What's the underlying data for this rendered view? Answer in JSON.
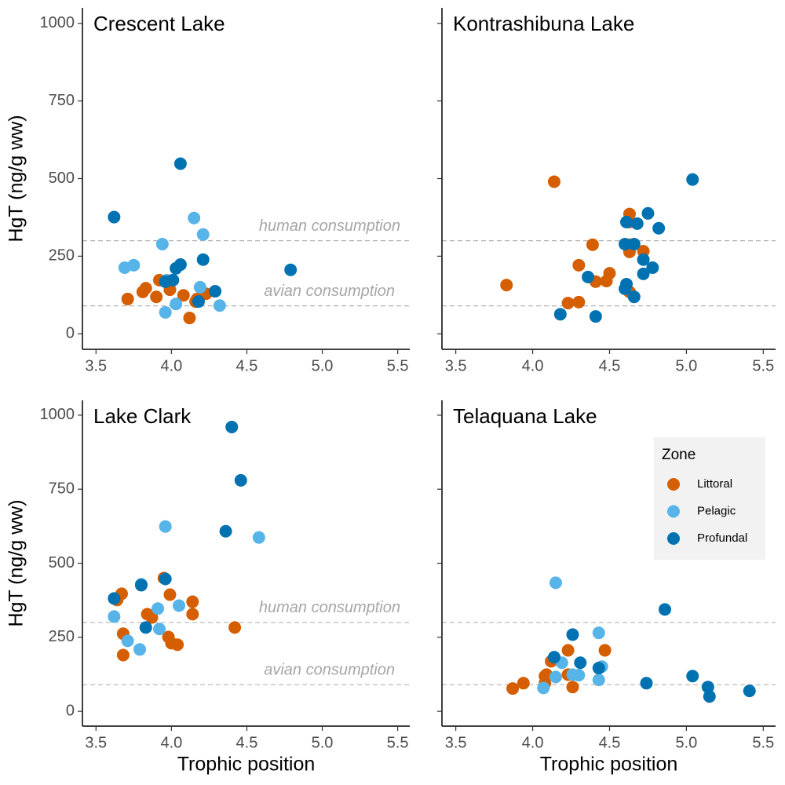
{
  "chart_data": [
    {
      "type": "scatter",
      "title": "Crescent Lake",
      "ylabel": "HgT (ng/g ww)",
      "ytick_labels": true,
      "xlim": [
        3.41,
        5.58
      ],
      "ylim": [
        -50,
        1050
      ],
      "xticks": [
        3.5,
        4.0,
        4.5,
        5.0,
        5.5
      ],
      "yticks": [
        0,
        250,
        500,
        750,
        1000
      ],
      "hlines": [
        {
          "value": 300,
          "label": "human consumption"
        },
        {
          "value": 90,
          "label": "avian consumption"
        }
      ],
      "series": [
        {
          "name": "Littoral",
          "color": "#d55e00",
          "x": [
            3.71,
            3.81,
            3.83,
            3.9,
            3.92,
            3.99,
            4.08,
            4.12,
            4.17,
            4.23,
            4.16
          ],
          "values": [
            112,
            135,
            147,
            119,
            173,
            142,
            124,
            51,
            112,
            129,
            104
          ]
        },
        {
          "name": "Pelagic",
          "color": "#56b4e9",
          "x": [
            3.69,
            3.75,
            3.94,
            3.96,
            4.03,
            4.15,
            4.21,
            4.19,
            4.32,
            3.97
          ],
          "values": [
            213,
            221,
            289,
            69,
            96,
            373,
            320,
            150,
            91,
            173
          ]
        },
        {
          "name": "Profundal",
          "color": "#0072b2",
          "x": [
            3.62,
            4.06,
            3.96,
            4.01,
            4.03,
            4.06,
            4.21,
            4.29,
            4.79,
            4.18
          ],
          "values": [
            376,
            548,
            168,
            173,
            211,
            223,
            239,
            137,
            206,
            104
          ]
        }
      ]
    },
    {
      "type": "scatter",
      "title": "Kontrashibuna Lake",
      "ytick_labels": false,
      "xlim": [
        3.41,
        5.58
      ],
      "ylim": [
        -50,
        1050
      ],
      "xticks": [
        3.5,
        4.0,
        4.5,
        5.0,
        5.5
      ],
      "yticks": [
        0,
        250,
        500,
        750,
        1000
      ],
      "hlines": [
        {
          "value": 300
        },
        {
          "value": 90
        }
      ],
      "series": [
        {
          "name": "Littoral",
          "color": "#d55e00",
          "x": [
            4.14,
            3.83,
            4.3,
            4.39,
            4.23,
            4.3,
            4.41,
            4.48,
            4.5,
            4.63,
            4.63,
            4.63,
            4.63,
            4.72,
            4.63
          ],
          "values": [
            490,
            157,
            221,
            287,
            99,
            102,
            168,
            170,
            195,
            386,
            360,
            287,
            264,
            266,
            135
          ]
        },
        {
          "name": "Pelagic",
          "color": "#56b4e9",
          "x": [],
          "values": []
        },
        {
          "name": "Profundal",
          "color": "#0072b2",
          "x": [
            5.04,
            4.61,
            4.68,
            4.75,
            4.82,
            4.6,
            4.66,
            4.72,
            4.78,
            4.72,
            4.36,
            4.61,
            4.6,
            4.66,
            4.18,
            4.41
          ],
          "values": [
            497,
            360,
            355,
            388,
            340,
            289,
            289,
            239,
            213,
            193,
            183,
            160,
            145,
            119,
            63,
            56
          ]
        }
      ]
    },
    {
      "type": "scatter",
      "title": "Lake Clark",
      "ylabel": "HgT (ng/g ww)",
      "xlabel": "Trophic position",
      "ytick_labels": true,
      "xlim": [
        3.41,
        5.58
      ],
      "ylim": [
        -50,
        1050
      ],
      "xticks": [
        3.5,
        4.0,
        4.5,
        5.0,
        5.5
      ],
      "yticks": [
        0,
        250,
        500,
        750,
        1000
      ],
      "hlines": [
        {
          "value": 300,
          "label": "human consumption"
        },
        {
          "value": 90,
          "label": "avian consumption"
        }
      ],
      "series": [
        {
          "name": "Littoral",
          "color": "#d55e00",
          "x": [
            3.67,
            3.64,
            3.68,
            3.68,
            3.84,
            3.87,
            3.95,
            3.99,
            3.98,
            4.0,
            4.04,
            4.14,
            4.14,
            4.42
          ],
          "values": [
            397,
            376,
            262,
            190,
            328,
            317,
            450,
            394,
            251,
            230,
            225,
            370,
            328,
            283
          ]
        },
        {
          "name": "Pelagic",
          "color": "#56b4e9",
          "x": [
            3.96,
            4.58,
            3.8,
            3.91,
            4.05,
            3.62,
            3.71,
            3.79,
            3.92
          ],
          "values": [
            624,
            587,
            429,
            347,
            357,
            320,
            238,
            209,
            278
          ]
        },
        {
          "name": "Profundal",
          "color": "#0072b2",
          "x": [
            4.4,
            4.46,
            4.36,
            3.62,
            3.8,
            3.96,
            3.83
          ],
          "values": [
            960,
            780,
            608,
            381,
            426,
            447,
            283
          ]
        }
      ]
    },
    {
      "type": "scatter",
      "title": "Telaquana Lake",
      "xlabel": "Trophic position",
      "ytick_labels": false,
      "xlim": [
        3.41,
        5.58
      ],
      "ylim": [
        -50,
        1050
      ],
      "xticks": [
        3.5,
        4.0,
        4.5,
        5.0,
        5.5
      ],
      "yticks": [
        0,
        250,
        500,
        750,
        1000
      ],
      "hlines": [
        {
          "value": 300
        },
        {
          "value": 90
        }
      ],
      "legend": {
        "title": "Zone",
        "position": "right"
      },
      "series": [
        {
          "name": "Littoral",
          "color": "#d55e00",
          "x": [
            3.87,
            3.94,
            4.08,
            4.08,
            4.12,
            4.09,
            4.23,
            4.23,
            4.26,
            4.47
          ],
          "values": [
            77,
            95,
            119,
            95,
            169,
            124,
            206,
            124,
            82,
            206
          ]
        },
        {
          "name": "Pelagic",
          "color": "#56b4e9",
          "x": [
            4.15,
            4.19,
            4.15,
            4.07,
            4.26,
            4.3,
            4.43,
            4.45,
            4.43
          ],
          "values": [
            434,
            164,
            116,
            79,
            124,
            122,
            265,
            151,
            106
          ]
        },
        {
          "name": "Profundal",
          "color": "#0072b2",
          "x": [
            4.26,
            4.14,
            4.31,
            4.43,
            4.86,
            4.74,
            5.04,
            5.14,
            5.15,
            5.41
          ],
          "values": [
            259,
            183,
            164,
            146,
            344,
            95,
            119,
            82,
            50,
            69
          ]
        }
      ]
    }
  ]
}
